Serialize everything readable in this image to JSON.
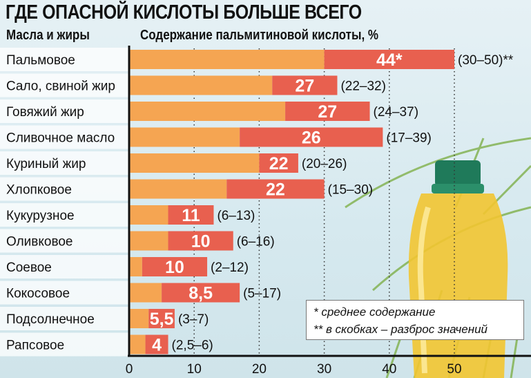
{
  "chart_data": {
    "type": "bar",
    "title": "ГДЕ ОПАСНОЙ КИСЛОТЫ БОЛЬШЕ ВСЕГО",
    "category_header": "Масла и жиры",
    "xlabel": "Содержание пальмитиновой кислоты, %",
    "xlim": [
      0,
      50
    ],
    "xticks": [
      "0",
      "10",
      "20",
      "30",
      "40",
      "50"
    ],
    "grid": true,
    "colors": {
      "range_min": "#f5a552",
      "range_span": "#e8604f"
    },
    "categories": [
      "Пальмовое",
      "Сало, свиной жир",
      "Говяжий жир",
      "Сливочное масло",
      "Куриный жир",
      "Хлопковое",
      "Кукурузное",
      "Оливковое",
      "Соевое",
      "Кокосовое",
      "Подсолнечное",
      "Рапсовое"
    ],
    "values": [
      44,
      27,
      27,
      26,
      22,
      22,
      11,
      10,
      10,
      8.5,
      5.5,
      4
    ],
    "value_labels": [
      "44*",
      "27",
      "27",
      "26",
      "22",
      "22",
      "11",
      "10",
      "10",
      "8,5",
      "5,5",
      "4"
    ],
    "range_min": [
      30,
      22,
      24,
      17,
      20,
      15,
      6,
      6,
      2,
      5,
      3,
      2.5
    ],
    "range_max": [
      50,
      32,
      37,
      39,
      26,
      30,
      13,
      16,
      12,
      17,
      7,
      6
    ],
    "range_labels": [
      "(30–50)**",
      "(22–32)",
      "(24–37)",
      "(17–39)",
      "(20–26)",
      "(15–30)",
      "(6–13)",
      "(6–16)",
      "(2–12)",
      "(5–17)",
      "(3–7)",
      "(2,5–6)"
    ]
  },
  "notes": [
    "* среднее содержание",
    "** в скобках – разброс значений"
  ]
}
